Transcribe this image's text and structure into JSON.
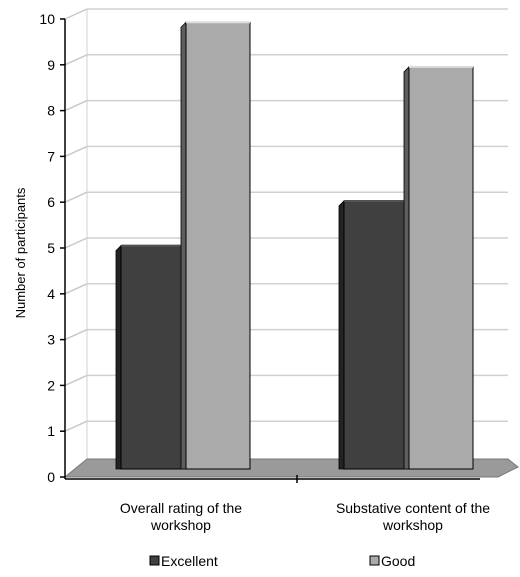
{
  "chart_data": {
    "type": "bar",
    "categories": [
      "Overall rating of the workshop",
      "Substative content of the workshop"
    ],
    "category_lines": [
      [
        "Overall rating of the",
        "workshop"
      ],
      [
        "Substative content of the",
        "workshop"
      ]
    ],
    "series": [
      {
        "name": "Excellent",
        "values": [
          5,
          6
        ],
        "color": "#404040"
      },
      {
        "name": "Good",
        "values": [
          10,
          9
        ],
        "color": "#aaaaaa"
      }
    ],
    "ylabel": "Number of participants",
    "xlabel": "",
    "ylim": [
      0,
      10
    ],
    "y_ticks": [
      0,
      1,
      2,
      3,
      4,
      5,
      6,
      7,
      8,
      9,
      10
    ],
    "grid": true,
    "legend": "bottom",
    "style": "3d-column"
  }
}
